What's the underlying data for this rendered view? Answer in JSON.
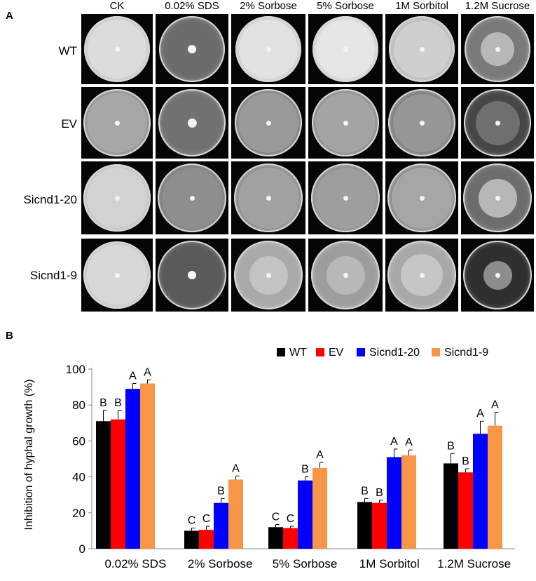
{
  "panelA": {
    "label": "A",
    "columns": [
      "CK",
      "0.02% SDS",
      "2% Sorbose",
      "5% Sorbose",
      "1M Sorbitol",
      "1.2M Sucrose"
    ],
    "rows": [
      "WT",
      "EV",
      "Sicnd1-20",
      "Sicnd1-9"
    ]
  },
  "panelB": {
    "label": "B",
    "ylabel": "Inhibition of hyphal growth (%)"
  },
  "colors": {
    "WT": "#000000",
    "EV": "#ff0000",
    "Sicnd1-20": "#0000ff",
    "Sicnd1-9": "#f79646"
  },
  "chart_data": {
    "type": "bar",
    "categories": [
      "0.02% SDS",
      "2% Sorbose",
      "5% Sorbose",
      "1M Sorbitol",
      "1.2M Sucrose"
    ],
    "series": [
      {
        "name": "WT",
        "values": [
          71,
          10,
          12,
          26,
          47.5
        ],
        "errors": [
          6,
          1.5,
          1.5,
          2,
          5.5
        ],
        "letters": [
          "B",
          "C",
          "C",
          "B",
          "B"
        ]
      },
      {
        "name": "EV",
        "values": [
          72,
          10.5,
          11.5,
          25.5,
          42.5
        ],
        "errors": [
          5,
          2,
          1,
          1.5,
          2
        ],
        "letters": [
          "B",
          "C",
          "C",
          "B",
          "B"
        ]
      },
      {
        "name": "Sicnd1-20",
        "values": [
          89,
          25.5,
          38,
          51,
          64
        ],
        "errors": [
          3,
          2.5,
          2,
          4.5,
          7
        ],
        "letters": [
          "A",
          "B",
          "B",
          "A",
          "A"
        ]
      },
      {
        "name": "Sicnd1-9",
        "values": [
          92,
          38.5,
          45,
          52,
          68.5
        ],
        "errors": [
          2,
          2,
          3,
          3,
          7.5
        ],
        "letters": [
          "A",
          "A",
          "A",
          "A",
          "A"
        ]
      }
    ],
    "ylim": [
      0,
      100
    ],
    "yticks": [
      0,
      20,
      40,
      60,
      80,
      100
    ],
    "grid": false,
    "legend": "top-right"
  }
}
